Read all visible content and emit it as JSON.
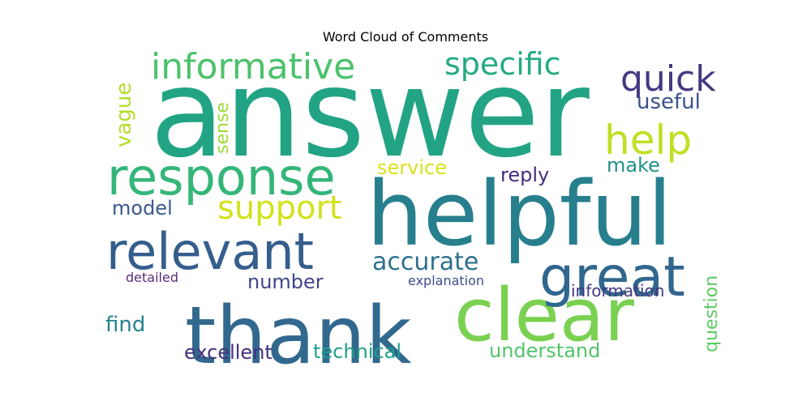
{
  "chart_data": {
    "type": "wordcloud",
    "title": "Word Cloud of Comments",
    "words": [
      {
        "text": "answer",
        "color": "#22a484"
      },
      {
        "text": "helpful",
        "color": "#277f8e"
      },
      {
        "text": "thank",
        "color": "#31688e"
      },
      {
        "text": "clear",
        "color": "#7ad151"
      },
      {
        "text": "response",
        "color": "#34b679"
      },
      {
        "text": "relevant",
        "color": "#355e8d"
      },
      {
        "text": "great",
        "color": "#30678e"
      },
      {
        "text": "informative",
        "color": "#4cc26c"
      },
      {
        "text": "specific",
        "color": "#25ab82"
      },
      {
        "text": "quick",
        "color": "#453781"
      },
      {
        "text": "help",
        "color": "#c0df25"
      },
      {
        "text": "support",
        "color": "#d2e21b"
      },
      {
        "text": "accurate",
        "color": "#2d718e"
      },
      {
        "text": "useful",
        "color": "#3a538b"
      },
      {
        "text": "vague",
        "color": "#b5de2b"
      },
      {
        "text": "sense",
        "color": "#a0da39"
      },
      {
        "text": "service",
        "color": "#d8e219"
      },
      {
        "text": "reply",
        "color": "#472d7b"
      },
      {
        "text": "make",
        "color": "#21918c"
      },
      {
        "text": "model",
        "color": "#38598c"
      },
      {
        "text": "number",
        "color": "#404688"
      },
      {
        "text": "detailed",
        "color": "#5b2b7e"
      },
      {
        "text": "explanation",
        "color": "#3e4c8a"
      },
      {
        "text": "information",
        "color": "#443983"
      },
      {
        "text": "question",
        "color": "#5ec962"
      },
      {
        "text": "find",
        "color": "#26828e"
      },
      {
        "text": "excellent",
        "color": "#46307e"
      },
      {
        "text": "technical",
        "color": "#1f9e89"
      },
      {
        "text": "understand",
        "color": "#52c569"
      }
    ]
  }
}
